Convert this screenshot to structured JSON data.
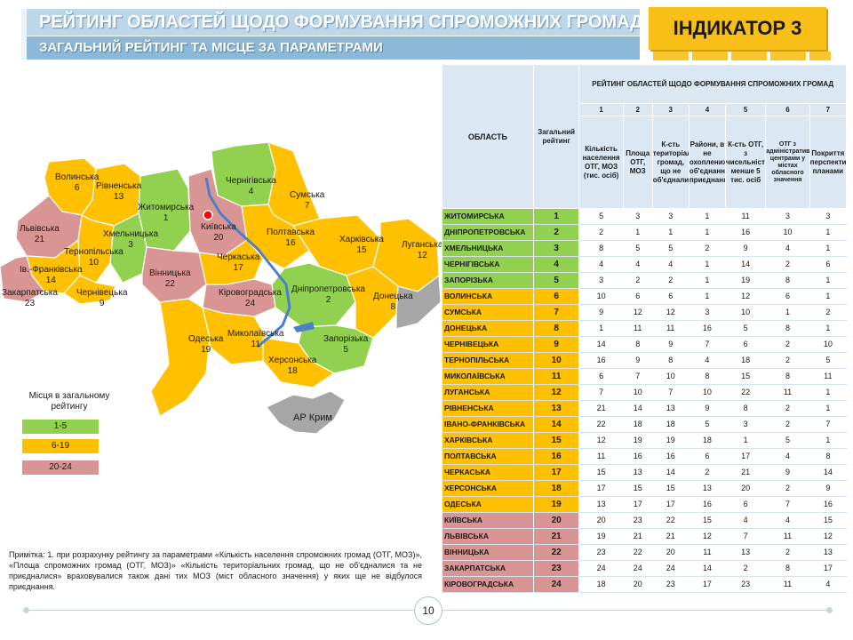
{
  "header": {
    "title": "РЕЙТИНГ ОБЛАСТЕЙ ЩОДО ФОРМУВАННЯ СПРОМОЖНИХ ГРОМАД",
    "subtitle": "ЗАГАЛЬНИЙ РЕЙТИНГ ТА МІСЦЕ ЗА ПАРАМЕТРАМИ",
    "indicator": "ІНДИКАТОР 3"
  },
  "colors": {
    "green": "#92d050",
    "orange": "#ffc000",
    "pink": "#d99594",
    "gray": "#a6a6a6",
    "river": "#4a7fc9"
  },
  "map": {
    "regions": [
      {
        "name": "Волинська",
        "rank": "6"
      },
      {
        "name": "Рівненська",
        "rank": "13"
      },
      {
        "name": "Житомирська",
        "rank": "1"
      },
      {
        "name": "Київська",
        "rank": "20"
      },
      {
        "name": "Чернігівська",
        "rank": "4"
      },
      {
        "name": "Сумська",
        "rank": "7"
      },
      {
        "name": "Львівська",
        "rank": "21"
      },
      {
        "name": "Тернопільська",
        "rank": "10"
      },
      {
        "name": "Хмельницька",
        "rank": "3"
      },
      {
        "name": "Вінницька",
        "rank": "22"
      },
      {
        "name": "Черкаська",
        "rank": "17"
      },
      {
        "name": "Полтавська",
        "rank": "16"
      },
      {
        "name": "Харківська",
        "rank": "15"
      },
      {
        "name": "Луганська",
        "rank": "12"
      },
      {
        "name": "Ів.-Франківська",
        "rank": "14"
      },
      {
        "name": "Закарпатська",
        "rank": "23"
      },
      {
        "name": "Чернівецька",
        "rank": "9"
      },
      {
        "name": "Кіровоградська",
        "rank": "24"
      },
      {
        "name": "Дніпропетровська",
        "rank": "2"
      },
      {
        "name": "Донецька",
        "rank": "8"
      },
      {
        "name": "Одеська",
        "rank": "19"
      },
      {
        "name": "Миколаївська",
        "rank": "11"
      },
      {
        "name": "Запорізька",
        "rank": "5"
      },
      {
        "name": "Херсонська",
        "rank": "18"
      }
    ],
    "crimea": "АР Крим"
  },
  "legend": {
    "title": "Місця в загальному рейтингу",
    "items": [
      "1-5",
      "6-19",
      "20-24"
    ]
  },
  "note": "Примітка: 1. при розрахунку рейтингу за параметрами «Кількість населення спроможних громад (ОТГ, МОЗ)», «Площа спроможних громад (ОТГ, МОЗ)» «Кількість територіальних громад, що не об'єдналися та не приєдналися» враховувалися також дані тих МОЗ (міст обласного значення) у яких ще не відбулося приєднання.",
  "table": {
    "col_region": "ОБЛАСТЬ",
    "col_overall": "Загальний рейтинг",
    "group_header": "РЕЙТИНГ ОБЛАСТЕЙ ЩОДО ФОРМУВАННЯ СПРОМОЖНИХ ГРОМАД",
    "param_numbers": [
      "1",
      "2",
      "3",
      "4",
      "5",
      "6",
      "7"
    ],
    "param_names": [
      "Кількість населення ОТГ, МОЗ (тис. осіб)",
      "Площа ОТГ, МОЗ",
      "К-сть територіальних громад, що не об'єднались",
      "Райони, в не охоплених об'єднанням, приєднанням",
      "К-сть ОТГ, з чисельністю менше 5 тис. осіб",
      "ОТГ з адміністративними центрами у містах обласного значення",
      "Покриття перспективними планами"
    ],
    "rows": [
      {
        "name": "ЖИТОМИРСЬКА",
        "rank": "1",
        "vals": [
          "5",
          "3",
          "3",
          "1",
          "11",
          "3",
          "3"
        ]
      },
      {
        "name": "ДНІПРОПЕТРОВСЬКА",
        "rank": "2",
        "vals": [
          "2",
          "1",
          "1",
          "1",
          "16",
          "10",
          "1"
        ]
      },
      {
        "name": "ХМЕЛЬНИЦЬКА",
        "rank": "3",
        "vals": [
          "8",
          "5",
          "5",
          "2",
          "9",
          "4",
          "1"
        ]
      },
      {
        "name": "ЧЕРНІГІВСЬКА",
        "rank": "4",
        "vals": [
          "4",
          "4",
          "4",
          "1",
          "14",
          "2",
          "6"
        ]
      },
      {
        "name": "ЗАПОРІЗЬКА",
        "rank": "5",
        "vals": [
          "3",
          "2",
          "2",
          "1",
          "19",
          "8",
          "1"
        ]
      },
      {
        "name": "ВОЛИНСЬКА",
        "rank": "6",
        "vals": [
          "10",
          "6",
          "6",
          "1",
          "12",
          "6",
          "1"
        ]
      },
      {
        "name": "СУМСЬКА",
        "rank": "7",
        "vals": [
          "9",
          "12",
          "12",
          "3",
          "10",
          "1",
          "2"
        ]
      },
      {
        "name": "ДОНЕЦЬКА",
        "rank": "8",
        "vals": [
          "1",
          "11",
          "11",
          "16",
          "5",
          "8",
          "1"
        ]
      },
      {
        "name": "ЧЕРНІВЕЦЬКА",
        "rank": "9",
        "vals": [
          "14",
          "8",
          "9",
          "7",
          "6",
          "2",
          "10"
        ]
      },
      {
        "name": "ТЕРНОПІЛЬСЬКА",
        "rank": "10",
        "vals": [
          "16",
          "9",
          "8",
          "4",
          "18",
          "2",
          "5"
        ]
      },
      {
        "name": "МИКОЛАЇВСЬКА",
        "rank": "11",
        "vals": [
          "6",
          "7",
          "10",
          "8",
          "15",
          "8",
          "11"
        ]
      },
      {
        "name": "ЛУГАНСЬКА",
        "rank": "12",
        "vals": [
          "7",
          "10",
          "7",
          "10",
          "22",
          "11",
          "1"
        ]
      },
      {
        "name": "РІВНЕНСЬКА",
        "rank": "13",
        "vals": [
          "21",
          "14",
          "13",
          "9",
          "8",
          "2",
          "1"
        ]
      },
      {
        "name": "ІВАНО-ФРАНКІВСЬКА",
        "rank": "14",
        "vals": [
          "22",
          "18",
          "18",
          "5",
          "3",
          "2",
          "7"
        ]
      },
      {
        "name": "ХАРКІВСЬКА",
        "rank": "15",
        "vals": [
          "12",
          "19",
          "19",
          "18",
          "1",
          "5",
          "1"
        ]
      },
      {
        "name": "ПОЛТАВСЬКА",
        "rank": "16",
        "vals": [
          "11",
          "16",
          "16",
          "6",
          "17",
          "4",
          "8"
        ]
      },
      {
        "name": "ЧЕРКАСЬКА",
        "rank": "17",
        "vals": [
          "15",
          "13",
          "14",
          "2",
          "21",
          "9",
          "14"
        ]
      },
      {
        "name": "ХЕРСОНСЬКА",
        "rank": "18",
        "vals": [
          "17",
          "15",
          "15",
          "13",
          "20",
          "2",
          "9"
        ]
      },
      {
        "name": "ОДЕСЬКА",
        "rank": "19",
        "vals": [
          "13",
          "17",
          "17",
          "16",
          "6",
          "7",
          "16"
        ]
      },
      {
        "name": "КИЇВСЬКА",
        "rank": "20",
        "vals": [
          "20",
          "23",
          "22",
          "15",
          "4",
          "4",
          "15"
        ]
      },
      {
        "name": "ЛЬВІВСЬКА",
        "rank": "21",
        "vals": [
          "19",
          "21",
          "21",
          "12",
          "7",
          "11",
          "12"
        ]
      },
      {
        "name": "ВІННИЦЬКА",
        "rank": "22",
        "vals": [
          "23",
          "22",
          "20",
          "11",
          "13",
          "2",
          "13"
        ]
      },
      {
        "name": "ЗАКАРПАТСЬКА",
        "rank": "23",
        "vals": [
          "24",
          "24",
          "24",
          "14",
          "2",
          "8",
          "17"
        ]
      },
      {
        "name": "КІРОВОГРАДСЬКА",
        "rank": "24",
        "vals": [
          "18",
          "20",
          "23",
          "17",
          "23",
          "11",
          "4"
        ]
      }
    ]
  },
  "page_number": "10"
}
